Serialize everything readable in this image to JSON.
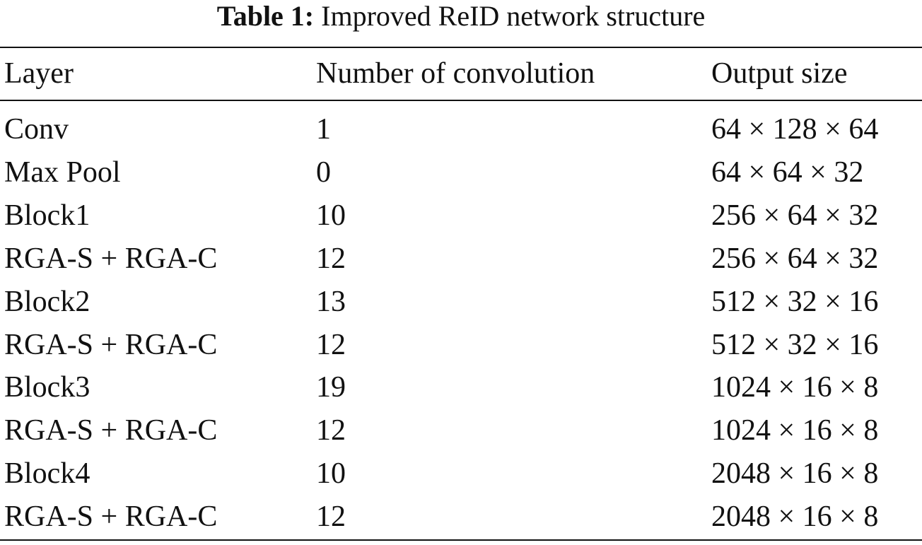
{
  "caption": {
    "label": "Table 1:",
    "text": "Improved ReID network structure"
  },
  "table": {
    "header": [
      "Layer",
      "Number of convolution",
      "Output size"
    ],
    "rows": [
      [
        "Conv",
        1,
        "64 × 128 × 64"
      ],
      [
        "Max Pool",
        0,
        "64 × 64 × 32"
      ],
      [
        "Block1",
        10,
        "256 × 64 × 32"
      ],
      [
        "RGA-S + RGA-C",
        12,
        "256 × 64 × 32"
      ],
      [
        "Block2",
        13,
        "512 × 32 × 16"
      ],
      [
        "RGA-S + RGA-C",
        12,
        "512 × 32 × 16"
      ],
      [
        "Block3",
        19,
        "1024 × 16 × 8"
      ],
      [
        "RGA-S + RGA-C",
        12,
        "1024 × 16 × 8"
      ],
      [
        "Block4",
        10,
        "2048 × 16 × 8"
      ],
      [
        "RGA-S + RGA-C",
        12,
        "2048 × 16 × 8"
      ]
    ]
  }
}
